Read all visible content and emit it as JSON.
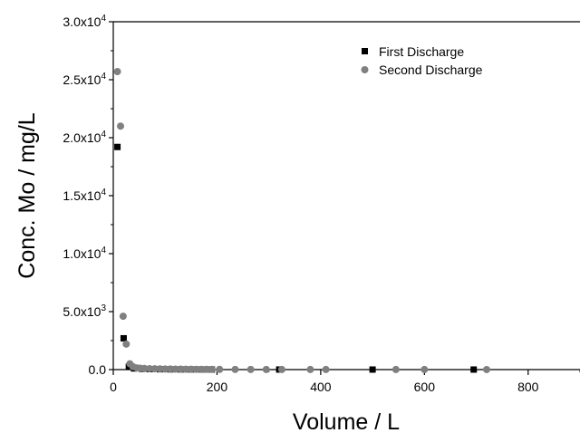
{
  "chart_data": {
    "type": "scatter",
    "title": "",
    "xlabel": "Volume / L",
    "ylabel": "Conc. Mo / mg/L",
    "xlim": [
      0,
      900
    ],
    "ylim": [
      0,
      30000
    ],
    "x_ticks": [
      0,
      200,
      400,
      600,
      800
    ],
    "x_tick_labels": [
      "0",
      "200",
      "400",
      "600",
      "800"
    ],
    "y_ticks": [
      0,
      5000,
      10000,
      15000,
      20000,
      25000,
      30000
    ],
    "y_tick_labels": [
      {
        "mantissa": "0.0",
        "exp": ""
      },
      {
        "mantissa": "5.0x10",
        "exp": "3"
      },
      {
        "mantissa": "1.0x10",
        "exp": "4"
      },
      {
        "mantissa": "1.5x10",
        "exp": "4"
      },
      {
        "mantissa": "2.0x10",
        "exp": "4"
      },
      {
        "mantissa": "2.5x10",
        "exp": "4"
      },
      {
        "mantissa": "3.0x10",
        "exp": "4"
      }
    ],
    "grid": false,
    "legend_position": "top-right",
    "series": [
      {
        "name": "First Discharge",
        "marker": "square",
        "color": "#000000",
        "points": [
          [
            8,
            19200
          ],
          [
            20,
            2700
          ],
          [
            30,
            250
          ],
          [
            40,
            100
          ],
          [
            55,
            60
          ],
          [
            70,
            40
          ],
          [
            90,
            30
          ],
          [
            110,
            20
          ],
          [
            130,
            15
          ],
          [
            150,
            12
          ],
          [
            170,
            10
          ],
          [
            190,
            8
          ],
          [
            320,
            5
          ],
          [
            500,
            3
          ],
          [
            695,
            3
          ]
        ]
      },
      {
        "name": "Second Discharge",
        "marker": "circle",
        "color": "#808080",
        "points": [
          [
            8,
            25700
          ],
          [
            14,
            21000
          ],
          [
            19,
            4600
          ],
          [
            25,
            2200
          ],
          [
            32,
            500
          ],
          [
            38,
            250
          ],
          [
            45,
            150
          ],
          [
            52,
            120
          ],
          [
            60,
            100
          ],
          [
            70,
            80
          ],
          [
            80,
            70
          ],
          [
            90,
            60
          ],
          [
            100,
            50
          ],
          [
            110,
            45
          ],
          [
            120,
            40
          ],
          [
            130,
            35
          ],
          [
            140,
            30
          ],
          [
            150,
            25
          ],
          [
            160,
            22
          ],
          [
            170,
            20
          ],
          [
            180,
            18
          ],
          [
            190,
            15
          ],
          [
            205,
            15
          ],
          [
            235,
            12
          ],
          [
            265,
            10
          ],
          [
            295,
            10
          ],
          [
            325,
            8
          ],
          [
            380,
            7
          ],
          [
            410,
            6
          ],
          [
            545,
            5
          ],
          [
            600,
            5
          ],
          [
            720,
            4
          ]
        ]
      }
    ]
  }
}
